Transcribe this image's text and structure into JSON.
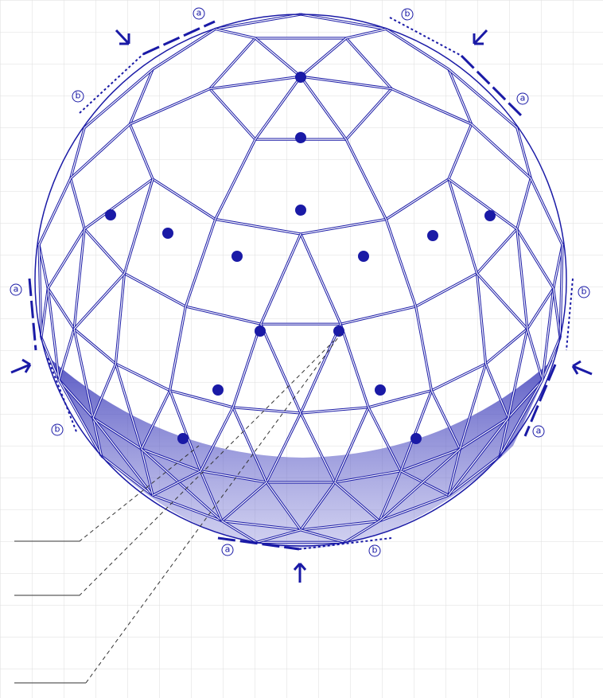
{
  "edge_labels": [
    "a",
    "b",
    "a",
    "b",
    "a",
    "b",
    "b",
    "a",
    "a",
    "b"
  ]
}
